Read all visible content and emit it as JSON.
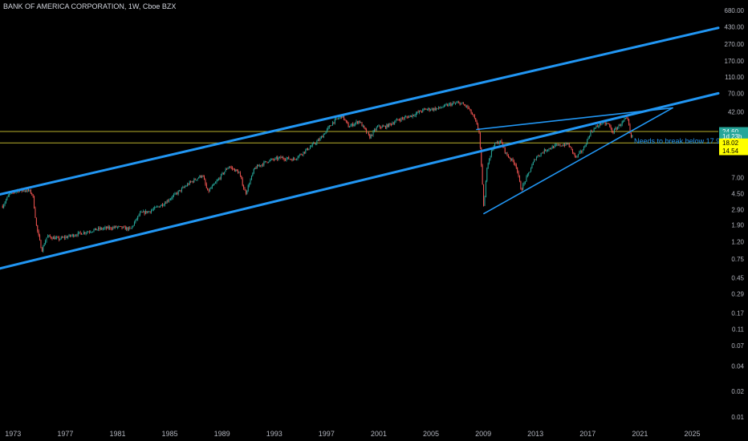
{
  "header": {
    "title": "BANK OF AMERICA CORPORATION, 1W, Cboe BZX"
  },
  "colors": {
    "background": "#000000",
    "up": "#26a69a",
    "down": "#ef5350",
    "trend": "#2196f3",
    "level": "#b8b02c",
    "badge_green": "#26a69a",
    "badge_yellow": "#ffff00"
  },
  "chart_data": {
    "type": "candlestick",
    "scale": "log",
    "x_ticks": [
      "1973",
      "1977",
      "1981",
      "1985",
      "1989",
      "1993",
      "1997",
      "2001",
      "2005",
      "2009",
      "2013",
      "2017",
      "2021",
      "2025"
    ],
    "y_ticks": [
      "680.00",
      "430.00",
      "270.00",
      "170.00",
      "110.00",
      "70.00",
      "42.00",
      "24.60",
      "18.02",
      "14.54",
      "7.00",
      "4.50",
      "2.90",
      "1.90",
      "1.20",
      "0.75",
      "0.45",
      "0.29",
      "0.17",
      "0.11",
      "0.07",
      "0.04",
      "0.02",
      "0.01"
    ],
    "ylim": [
      0.008,
      900
    ],
    "xlim": [
      1972.0,
      2027.0
    ],
    "price_path": [
      [
        1972.2,
        3.2
      ],
      [
        1972.7,
        4.4
      ],
      [
        1973.3,
        4.9
      ],
      [
        1974.2,
        4.9
      ],
      [
        1974.5,
        4.4
      ],
      [
        1974.8,
        1.8
      ],
      [
        1975.2,
        0.95
      ],
      [
        1975.6,
        1.4
      ],
      [
        1976.5,
        1.3
      ],
      [
        1978.0,
        1.5
      ],
      [
        1979.5,
        1.7
      ],
      [
        1981.0,
        1.8
      ],
      [
        1982.0,
        1.7
      ],
      [
        1982.7,
        2.6
      ],
      [
        1983.5,
        2.8
      ],
      [
        1984.5,
        3.4
      ],
      [
        1985.5,
        4.5
      ],
      [
        1986.5,
        6.0
      ],
      [
        1987.5,
        7.5
      ],
      [
        1987.9,
        4.7
      ],
      [
        1988.5,
        6.0
      ],
      [
        1989.5,
        9.5
      ],
      [
        1990.3,
        8.0
      ],
      [
        1990.8,
        4.5
      ],
      [
        1991.5,
        9.0
      ],
      [
        1992.5,
        11.0
      ],
      [
        1993.5,
        12.0
      ],
      [
        1994.5,
        11.5
      ],
      [
        1995.5,
        15.0
      ],
      [
        1996.5,
        20.0
      ],
      [
        1997.5,
        32.0
      ],
      [
        1998.2,
        38.0
      ],
      [
        1998.7,
        28.0
      ],
      [
        1999.5,
        33.0
      ],
      [
        2000.3,
        21.0
      ],
      [
        2000.9,
        28.0
      ],
      [
        2001.5,
        28.0
      ],
      [
        2002.5,
        34.0
      ],
      [
        2003.5,
        38.0
      ],
      [
        2004.5,
        45.0
      ],
      [
        2005.5,
        46.0
      ],
      [
        2006.5,
        52.0
      ],
      [
        2007.2,
        54.0
      ],
      [
        2007.8,
        48.0
      ],
      [
        2008.3,
        36.0
      ],
      [
        2008.7,
        24.0
      ],
      [
        2009.05,
        2.9
      ],
      [
        2009.3,
        10.0
      ],
      [
        2009.8,
        17.0
      ],
      [
        2010.3,
        19.0
      ],
      [
        2010.8,
        13.0
      ],
      [
        2011.5,
        10.0
      ],
      [
        2011.9,
        5.0
      ],
      [
        2012.5,
        8.0
      ],
      [
        2013.0,
        12.0
      ],
      [
        2013.8,
        15.0
      ],
      [
        2014.5,
        16.5
      ],
      [
        2015.5,
        17.5
      ],
      [
        2016.1,
        12.0
      ],
      [
        2016.7,
        15.5
      ],
      [
        2017.2,
        24.0
      ],
      [
        2018.0,
        31.0
      ],
      [
        2018.6,
        30.0
      ],
      [
        2018.9,
        24.0
      ],
      [
        2019.4,
        29.0
      ],
      [
        2019.9,
        34.5
      ],
      [
        2020.1,
        33.0
      ],
      [
        2020.3,
        20.0
      ],
      [
        2020.5,
        24.0
      ]
    ],
    "trendlines": [
      {
        "name": "upper-channel",
        "points": [
          [
            1972.0,
            4.4
          ],
          [
            2027.0,
            420.0
          ]
        ],
        "width": 3
      },
      {
        "name": "lower-channel",
        "points": [
          [
            1972.0,
            0.58
          ],
          [
            2027.0,
            70.0
          ]
        ],
        "width": 3
      },
      {
        "name": "wedge-resistance",
        "points": [
          [
            2008.5,
            26.0
          ],
          [
            2023.5,
            47.0
          ]
        ],
        "width": 1.6
      },
      {
        "name": "wedge-support",
        "points": [
          [
            2009.05,
            2.6
          ],
          [
            2023.5,
            47.0
          ]
        ],
        "width": 1.6
      }
    ],
    "levels": [
      {
        "value": 24.6,
        "label": "24.60"
      },
      {
        "value": 18.02,
        "label": "18.02"
      }
    ],
    "badges": [
      {
        "value": 24.6,
        "label": "24.60",
        "style": "green"
      },
      {
        "value": 21.5,
        "label": "1d 23h",
        "style": "green"
      },
      {
        "value": 18.02,
        "label": "18.02",
        "style": "yellow"
      },
      {
        "value": 14.54,
        "label": "14.54",
        "style": "yellow"
      }
    ],
    "annotation": {
      "text": "Needs to break below 17.90",
      "x": 2020.55,
      "y": 18.02
    }
  }
}
